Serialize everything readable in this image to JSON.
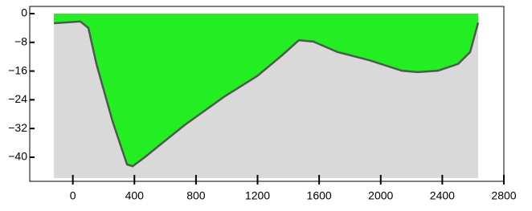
{
  "chart_data": {
    "type": "area",
    "x": [
      -123,
      49,
      101,
      153,
      258,
      352,
      388,
      467,
      571,
      727,
      988,
      1197,
      1354,
      1469,
      1563,
      1719,
      1928,
      2137,
      2241,
      2372,
      2503,
      2581,
      2633
    ],
    "values": [
      -2.7,
      -2.2,
      -4,
      -14,
      -30,
      -42,
      -42.5,
      -40,
      -36.4,
      -31,
      -23,
      -17.4,
      -11.8,
      -7.4,
      -7.8,
      -10.7,
      -13,
      -15.9,
      -16.3,
      -15.9,
      -14,
      -10.7,
      -2.5
    ],
    "line_color": "#555555",
    "fill_color": "#22ee22",
    "ground_color": "#d9d9d9",
    "xlim": [
      -280,
      2800
    ],
    "ylim": [
      -46.7,
      2
    ],
    "xticks": [
      0,
      400,
      800,
      1200,
      1600,
      2000,
      2400,
      2800
    ],
    "yticks": [
      0,
      {
        "value": -8,
        "label": "−8"
      },
      {
        "value": -16,
        "label": "−16"
      },
      {
        "value": -24,
        "label": "−24"
      },
      {
        "value": -32,
        "label": "−32"
      },
      {
        "value": -40,
        "label": "−40"
      }
    ]
  }
}
